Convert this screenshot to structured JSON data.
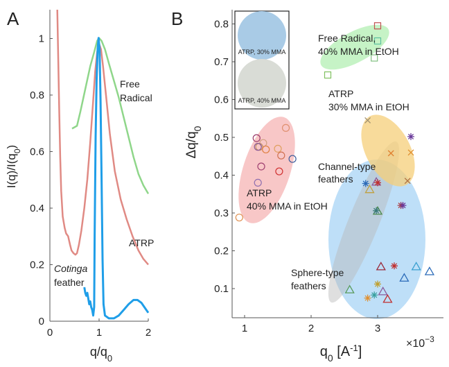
{
  "chart_data": [
    {
      "panel_label": "A",
      "type": "line",
      "xlabel": "q/q0",
      "ylabel": "I(q)/I(q0)",
      "xlim": [
        0,
        2
      ],
      "ylim": [
        0,
        1.1
      ],
      "xticks": [
        "0",
        "1",
        "2"
      ],
      "yticks": [
        "0",
        "0.2",
        "0.4",
        "0.6",
        "0.8",
        "1"
      ],
      "annotations": [
        {
          "id": "free_radical",
          "lines": [
            "Free",
            "Radical"
          ],
          "color": "#222222"
        },
        {
          "id": "atrp",
          "lines": [
            "ATRP"
          ],
          "color": "#222222"
        },
        {
          "id": "cotinga",
          "lines": [
            "Cotinga",
            "feather"
          ],
          "italic_first": true,
          "color": "#222222"
        }
      ],
      "series": [
        {
          "id": "free_radical",
          "color": "#8fd68a",
          "points": [
            [
              0.45,
              0.68
            ],
            [
              0.55,
              0.69
            ],
            [
              0.62,
              0.74
            ],
            [
              0.72,
              0.82
            ],
            [
              0.82,
              0.9
            ],
            [
              0.9,
              0.95
            ],
            [
              0.96,
              0.99
            ],
            [
              1.0,
              1.0
            ],
            [
              1.05,
              0.99
            ],
            [
              1.12,
              0.96
            ],
            [
              1.2,
              0.91
            ],
            [
              1.3,
              0.85
            ],
            [
              1.4,
              0.79
            ],
            [
              1.5,
              0.72
            ],
            [
              1.6,
              0.65
            ],
            [
              1.7,
              0.58
            ],
            [
              1.8,
              0.52
            ],
            [
              1.9,
              0.48
            ],
            [
              2.0,
              0.45
            ]
          ]
        },
        {
          "id": "atrp",
          "color": "#e08a84",
          "points": [
            [
              0.15,
              1.1
            ],
            [
              0.17,
              0.92
            ],
            [
              0.19,
              0.74
            ],
            [
              0.21,
              0.58
            ],
            [
              0.23,
              0.46
            ],
            [
              0.26,
              0.37
            ],
            [
              0.3,
              0.33
            ],
            [
              0.33,
              0.31
            ],
            [
              0.37,
              0.3
            ],
            [
              0.41,
              0.27
            ],
            [
              0.44,
              0.25
            ],
            [
              0.48,
              0.24
            ],
            [
              0.52,
              0.235
            ],
            [
              0.55,
              0.24
            ],
            [
              0.59,
              0.27
            ],
            [
              0.64,
              0.32
            ],
            [
              0.7,
              0.4
            ],
            [
              0.76,
              0.5
            ],
            [
              0.82,
              0.63
            ],
            [
              0.88,
              0.78
            ],
            [
              0.92,
              0.88
            ],
            [
              0.96,
              0.95
            ],
            [
              1.0,
              0.98
            ],
            [
              1.04,
              0.96
            ],
            [
              1.08,
              0.9
            ],
            [
              1.14,
              0.8
            ],
            [
              1.22,
              0.66
            ],
            [
              1.32,
              0.53
            ],
            [
              1.44,
              0.43
            ],
            [
              1.56,
              0.36
            ],
            [
              1.68,
              0.3
            ],
            [
              1.8,
              0.25
            ],
            [
              1.9,
              0.22
            ],
            [
              2.0,
              0.2
            ]
          ]
        },
        {
          "id": "cotinga",
          "color": "#1f9ee8",
          "points": [
            [
              0.7,
              0.12
            ],
            [
              0.72,
              0.1
            ],
            [
              0.74,
              0.09
            ],
            [
              0.76,
              0.1
            ],
            [
              0.78,
              0.08
            ],
            [
              0.8,
              0.06
            ],
            [
              0.82,
              0.07
            ],
            [
              0.84,
              0.05
            ],
            [
              0.86,
              0.04
            ],
            [
              0.88,
              0.02
            ],
            [
              0.9,
              0.05
            ],
            [
              0.91,
              0.3
            ],
            [
              0.93,
              0.65
            ],
            [
              0.95,
              0.85
            ],
            [
              0.97,
              0.96
            ],
            [
              0.99,
              1.0
            ],
            [
              1.01,
              0.96
            ],
            [
              1.03,
              0.78
            ],
            [
              1.05,
              0.5
            ],
            [
              1.07,
              0.22
            ],
            [
              1.09,
              0.06
            ],
            [
              1.12,
              0.02
            ],
            [
              1.2,
              0.01
            ],
            [
              1.3,
              0.01
            ],
            [
              1.4,
              0.02
            ],
            [
              1.5,
              0.04
            ],
            [
              1.6,
              0.06
            ],
            [
              1.7,
              0.075
            ],
            [
              1.78,
              0.075
            ],
            [
              1.86,
              0.065
            ],
            [
              1.94,
              0.045
            ],
            [
              2.0,
              0.03
            ]
          ]
        }
      ]
    },
    {
      "panel_label": "B",
      "type": "scatter",
      "xlabel": "q0 [A^-1]",
      "x_multiplier": "×10−3",
      "ylabel": "Δq/q0",
      "xlim": [
        0.8,
        4.0
      ],
      "ylim": [
        0.03,
        0.83
      ],
      "xticks": [
        "1",
        "2",
        "3"
      ],
      "yticks": [
        "0.1",
        "0.2",
        "0.3",
        "0.4",
        "0.5",
        "0.6",
        "0.7",
        "0.8"
      ],
      "inset_labels": [
        "ATRP, 30% MMA",
        "ATRP, 40% MMA"
      ],
      "groups": [
        {
          "id": "free_radical",
          "label_lines": [
            "Free Radical,",
            "40% MMA in EtOH"
          ]
        },
        {
          "id": "atrp30",
          "label_lines": [
            "ATRP",
            "30% MMA in EtOH"
          ]
        },
        {
          "id": "channel",
          "label_lines": [
            "Channel-type",
            "feathers"
          ]
        },
        {
          "id": "atrp40",
          "label_lines": [
            "ATRP",
            "40% MMA in EtOH"
          ]
        },
        {
          "id": "sphere",
          "label_lines": [
            "Sphere-type",
            "feathers"
          ]
        }
      ],
      "points": [
        {
          "m": "square",
          "x": 3.0,
          "y": 0.795,
          "c": "#c05050"
        },
        {
          "m": "square",
          "x": 3.0,
          "y": 0.755,
          "c": "#5bc0a0"
        },
        {
          "m": "square",
          "x": 2.95,
          "y": 0.71,
          "c": "#80c080"
        },
        {
          "m": "square",
          "x": 2.25,
          "y": 0.665,
          "c": "#80c060"
        },
        {
          "m": "x",
          "x": 2.85,
          "y": 0.545,
          "c": "#a09070"
        },
        {
          "m": "star",
          "x": 3.5,
          "y": 0.502,
          "c": "#6a3a9a"
        },
        {
          "m": "x",
          "x": 3.2,
          "y": 0.458,
          "c": "#e08030"
        },
        {
          "m": "x",
          "x": 3.5,
          "y": 0.46,
          "c": "#e09030"
        },
        {
          "m": "x",
          "x": 3.45,
          "y": 0.385,
          "c": "#b07040"
        },
        {
          "m": "circle",
          "x": 1.18,
          "y": 0.498,
          "c": "#9a3a6a"
        },
        {
          "m": "circle",
          "x": 1.22,
          "y": 0.475,
          "c": "#c09060"
        },
        {
          "m": "circle",
          "x": 1.28,
          "y": 0.485,
          "c": "#d0a080"
        },
        {
          "m": "circle",
          "x": 1.32,
          "y": 0.468,
          "c": "#e08040"
        },
        {
          "m": "circle",
          "x": 1.2,
          "y": 0.475,
          "c": "#8a5a9a"
        },
        {
          "m": "circle",
          "x": 1.62,
          "y": 0.525,
          "c": "#e09070"
        },
        {
          "m": "circle",
          "x": 1.5,
          "y": 0.47,
          "c": "#e0a060"
        },
        {
          "m": "circle",
          "x": 1.55,
          "y": 0.452,
          "c": "#d07050"
        },
        {
          "m": "circle",
          "x": 1.25,
          "y": 0.423,
          "c": "#a04070"
        },
        {
          "m": "circle",
          "x": 1.52,
          "y": 0.41,
          "c": "#d03030"
        },
        {
          "m": "circle",
          "x": 1.72,
          "y": 0.443,
          "c": "#3a5a9a"
        },
        {
          "m": "circle",
          "x": 1.2,
          "y": 0.38,
          "c": "#9070b0"
        },
        {
          "m": "circle",
          "x": 0.92,
          "y": 0.288,
          "c": "#e09050"
        },
        {
          "m": "star",
          "x": 2.82,
          "y": 0.378,
          "c": "#2a6ab8"
        },
        {
          "m": "triangle",
          "x": 2.98,
          "y": 0.382,
          "c": "#8a5a9a"
        },
        {
          "m": "star",
          "x": 3.0,
          "y": 0.38,
          "c": "#c03030"
        },
        {
          "m": "triangle",
          "x": 2.88,
          "y": 0.362,
          "c": "#c0a040"
        },
        {
          "m": "star",
          "x": 3.35,
          "y": 0.32,
          "c": "#b04040"
        },
        {
          "m": "star",
          "x": 3.38,
          "y": 0.32,
          "c": "#6a3a9a"
        },
        {
          "m": "triangle",
          "x": 3.0,
          "y": 0.305,
          "c": "#4a8a4a"
        },
        {
          "m": "star",
          "x": 2.98,
          "y": 0.306,
          "c": "#3a7a7a"
        },
        {
          "m": "triangle",
          "x": 3.05,
          "y": 0.158,
          "c": "#9a2a3a"
        },
        {
          "m": "star",
          "x": 3.25,
          "y": 0.16,
          "c": "#c03030"
        },
        {
          "m": "triangle",
          "x": 3.58,
          "y": 0.158,
          "c": "#3aa0d0"
        },
        {
          "m": "triangle",
          "x": 3.78,
          "y": 0.145,
          "c": "#2a6ab8"
        },
        {
          "m": "triangle",
          "x": 3.4,
          "y": 0.128,
          "c": "#2a6ab8"
        },
        {
          "m": "star",
          "x": 3.0,
          "y": 0.112,
          "c": "#c0a030"
        },
        {
          "m": "triangle",
          "x": 2.58,
          "y": 0.097,
          "c": "#5a9a5a"
        },
        {
          "m": "triangle",
          "x": 3.08,
          "y": 0.092,
          "c": "#8a5a9a"
        },
        {
          "m": "star",
          "x": 2.95,
          "y": 0.083,
          "c": "#3aa0a0"
        },
        {
          "m": "star",
          "x": 2.85,
          "y": 0.075,
          "c": "#e09030"
        },
        {
          "m": "triangle",
          "x": 3.15,
          "y": 0.072,
          "c": "#c03030"
        }
      ]
    }
  ]
}
